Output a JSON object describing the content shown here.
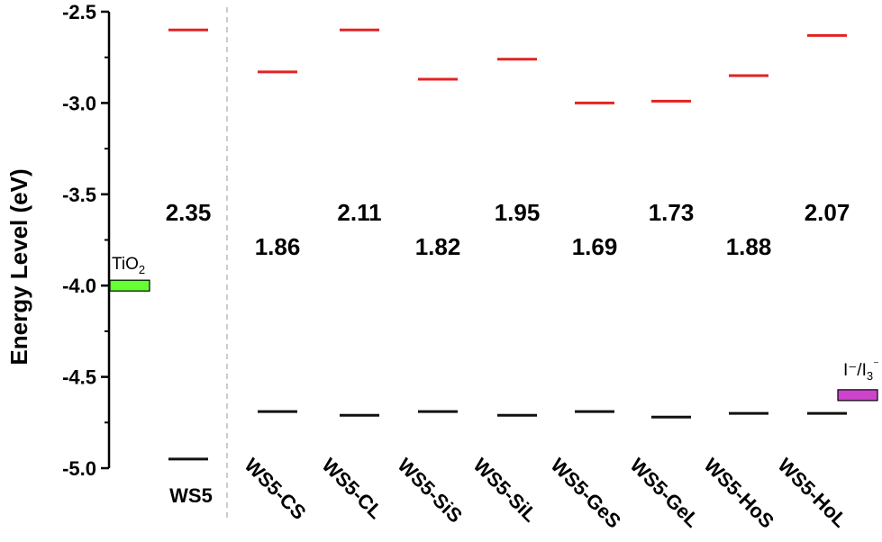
{
  "chart_data": {
    "type": "energy-level-diagram",
    "ylabel": "Energy Level (eV)",
    "ylim": [
      -5.0,
      -2.5
    ],
    "yticks": [
      "-2.5",
      "-3.0",
      "-3.5",
      "-4.0",
      "-4.5",
      "-5.0"
    ],
    "categories": [
      "WS5",
      "WS5-CS",
      "WS5-CL",
      "WS5-SiS",
      "WS5-SiL",
      "WS5-GeS",
      "WS5-GeL",
      "WS5-HoS",
      "WS5-HoL"
    ],
    "lumo": [
      -2.6,
      -2.83,
      -2.6,
      -2.87,
      -2.76,
      -3.0,
      -2.99,
      -2.85,
      -2.63
    ],
    "homo": [
      -4.95,
      -4.69,
      -4.71,
      -4.69,
      -4.71,
      -4.69,
      -4.72,
      -4.7,
      -4.7
    ],
    "gaps": [
      "2.35",
      "1.86",
      "2.11",
      "1.82",
      "1.95",
      "1.69",
      "1.73",
      "1.88",
      "2.07"
    ],
    "references": [
      {
        "name": "TiO",
        "sub": "2",
        "value": -4.0,
        "color": "#66ff33"
      },
      {
        "name": "I⁻/I",
        "sub": "3",
        "sup": "⁻",
        "value": -4.6,
        "color": "#cc44cc"
      }
    ],
    "lumo_color": "#e32222",
    "homo_color": "#111111",
    "divider_color": "#bbbbbb"
  }
}
